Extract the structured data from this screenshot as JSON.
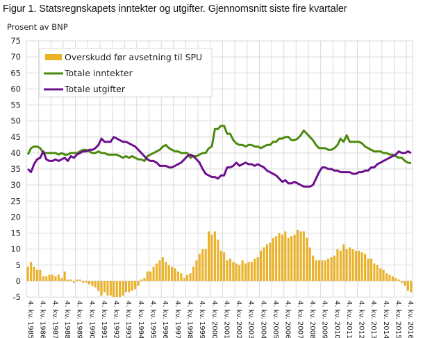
{
  "chart_data": {
    "type": "bar+line",
    "title": "Figur 1. Statsregnskapets inntekter og utgifter. Gjennomsnitt siste fire kvartaler",
    "ylabel": "Prosent av BNP",
    "xlabel": "",
    "ylim": [
      -5,
      75
    ],
    "yticks": [
      75,
      70,
      65,
      60,
      55,
      50,
      45,
      40,
      35,
      30,
      25,
      20,
      15,
      10,
      5,
      0,
      -5
    ],
    "grid": true,
    "legend_position": "top-left inside",
    "x_tick_labels": [
      "4. kv. 1985",
      "4. kv. 1986",
      "4. kv. 1987",
      "4. kv. 1988",
      "4. kv. 1989",
      "4. kv. 1990",
      "4. kv. 1991",
      "4. kv. 1992",
      "4. kv. 1993",
      "4. kv. 1994",
      "4. kv. 1995",
      "4. kv. 1996",
      "4. kv. 1997",
      "4. kv. 1998",
      "4. kv. 1999",
      "4. kv. 2000",
      "4. kv. 2001",
      "4. kv. 2002",
      "4. kv. 2003",
      "4. kv. 2004",
      "4. kv. 2005",
      "4. kv. 2006",
      "4. kv. 2007",
      "4. kv. 2008",
      "4. kv. 2009",
      "4. kv. 2010",
      "4. kv. 2011",
      "4. kv. 2012",
      "4. kv. 2013",
      "4. kv. 2014",
      "4. kv. 2015",
      "4. kv. 2016"
    ],
    "x_period": "Quarterly, 4. kv. 1985 – 1. kv. 2017",
    "series": [
      {
        "name": "Overskudd før avsetning til SPU",
        "type": "bar",
        "color": "#EBB127",
        "values": [
          4.5,
          6,
          4.5,
          3.5,
          3.5,
          1.5,
          1.5,
          2,
          2,
          1.5,
          2,
          1,
          3,
          0.5,
          0.5,
          -0.5,
          0.5,
          0.5,
          -0.5,
          -0.5,
          -1,
          -1.5,
          -2,
          -3,
          -4.5,
          -3.5,
          -4.5,
          -4.5,
          -5,
          -5,
          -5,
          -4.5,
          -3.5,
          -3.5,
          -3,
          -2.5,
          -1.5,
          0.5,
          1,
          3,
          3,
          4.5,
          5.5,
          6.5,
          7.5,
          6,
          5,
          4.5,
          4,
          3,
          2.5,
          1,
          2,
          2.5,
          4.5,
          6.5,
          8.5,
          10,
          10,
          15.5,
          14.5,
          15.5,
          13,
          9.5,
          9,
          6.5,
          7,
          6,
          5.5,
          5,
          6.5,
          5.5,
          6,
          6,
          7,
          7.5,
          9.5,
          10.5,
          11.5,
          12,
          13.5,
          14,
          15,
          14.5,
          15.5,
          13.5,
          14,
          14.5,
          16,
          15.5,
          15.5,
          13.5,
          10.5,
          8,
          6.5,
          6.5,
          6.5,
          6.5,
          7,
          7.5,
          8,
          10,
          9.5,
          11.5,
          10,
          10.5,
          10,
          9.5,
          9.5,
          9,
          8.5,
          7,
          7,
          5.5,
          5,
          4,
          3.5,
          2.5,
          2,
          1.5,
          1,
          0.5,
          -0.5,
          -1.5,
          -3,
          -3.5
        ]
      },
      {
        "name": "Totale inntekter",
        "type": "line",
        "color": "#4A8A0C",
        "values": [
          39.5,
          41.5,
          42,
          42,
          41.5,
          40,
          40,
          40,
          40,
          40,
          39.5,
          40,
          39.5,
          39.5,
          40,
          40,
          40,
          40.5,
          41,
          41,
          40.5,
          40,
          40,
          40.5,
          40,
          40,
          39.5,
          39.5,
          39.5,
          39.5,
          39,
          38.5,
          39,
          38.5,
          39,
          38.5,
          38,
          38,
          37.5,
          39,
          39.5,
          40,
          40.5,
          41,
          42,
          42.5,
          41.5,
          41,
          40.5,
          40.5,
          40,
          40,
          40,
          38.5,
          39,
          39,
          39.5,
          40,
          40,
          41.5,
          42,
          47.5,
          47.5,
          48.5,
          48.5,
          46,
          46,
          44,
          43,
          42.5,
          42.5,
          42,
          42.5,
          42.5,
          42,
          42,
          41.5,
          42,
          42.5,
          42.5,
          43.5,
          43.5,
          44.5,
          44.5,
          45,
          45,
          44,
          44,
          44.5,
          45.5,
          47,
          46,
          45,
          44,
          42.5,
          41.5,
          41.5,
          41.5,
          41,
          41,
          41.5,
          42.5,
          44.5,
          43.5,
          45.5,
          43.5,
          43.5,
          43.5,
          43.5,
          43,
          42,
          41.5,
          41,
          40.5,
          40.5,
          40.5,
          40,
          40,
          39.5,
          39.5,
          39,
          38.5,
          38.5,
          37.5,
          37,
          36.8
        ]
      },
      {
        "name": "Totale utgifter",
        "type": "line",
        "color": "#6B0F8C",
        "values": [
          35,
          34,
          36.5,
          38,
          38.5,
          40.5,
          38,
          37.5,
          37.5,
          38,
          37.5,
          38,
          38.5,
          37.5,
          39,
          38.5,
          39.5,
          40,
          40.5,
          40.5,
          41,
          41,
          41.5,
          42.5,
          44.5,
          43.5,
          43.5,
          43.5,
          45,
          44.5,
          44,
          43.5,
          43.5,
          43,
          42.5,
          42,
          41,
          40,
          39,
          38,
          37.5,
          37.5,
          37,
          36,
          36,
          36,
          35.5,
          35.5,
          36,
          36.5,
          37,
          38,
          39,
          39.5,
          39,
          38,
          37,
          35,
          33.5,
          33,
          32.5,
          32.5,
          32,
          33,
          33,
          35.5,
          35.5,
          36,
          37,
          36,
          36.5,
          37,
          36.5,
          36.5,
          36,
          36.5,
          36,
          35.5,
          34.5,
          34,
          33.5,
          33,
          32,
          31,
          31.5,
          30.5,
          30.5,
          31,
          30.5,
          30,
          29.5,
          29.5,
          29.5,
          30,
          32,
          34,
          35.5,
          35.5,
          35,
          35,
          34.5,
          34.5,
          34,
          34,
          34,
          34,
          33.5,
          33.5,
          34,
          34,
          34.5,
          34.5,
          35.5,
          35.5,
          36.5,
          37,
          37.5,
          38,
          38.5,
          39,
          39.5,
          40.5,
          40,
          40,
          40.5,
          40
        ]
      }
    ]
  }
}
